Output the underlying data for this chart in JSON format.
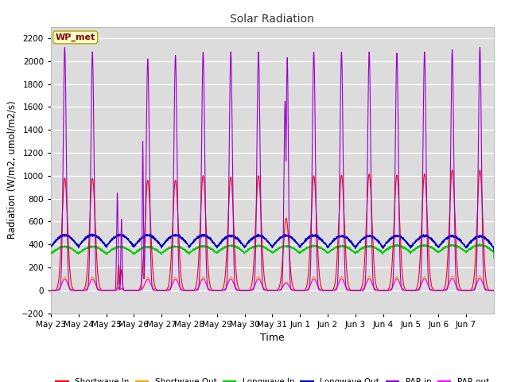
{
  "title": "Solar Radiation",
  "xlabel": "Time",
  "ylabel": "Radiation (W/m2, umol/m2/s)",
  "ylim": [
    -200,
    2300
  ],
  "yticks": [
    -200,
    0,
    200,
    400,
    600,
    800,
    1000,
    1200,
    1400,
    1600,
    1800,
    2000,
    2200
  ],
  "x_labels": [
    "May 23",
    "May 24",
    "May 25",
    "May 26",
    "May 27",
    "May 28",
    "May 29",
    "May 30",
    "May 31",
    "Jun 1",
    "Jun 2",
    "Jun 3",
    "Jun 4",
    "Jun 5",
    "Jun 6",
    "Jun 7"
  ],
  "annotation_text": "WP_met",
  "annotation_color": "#8B0000",
  "annotation_bg": "#FFFFCC",
  "colors": {
    "shortwave_in": "#FF0000",
    "shortwave_out": "#FFA500",
    "longwave_in": "#00CC00",
    "longwave_out": "#0000CD",
    "par_in": "#9900CC",
    "par_out": "#FF00FF"
  },
  "bg_color": "#DCDCDC",
  "legend_labels": [
    "Shortwave In",
    "Shortwave Out",
    "Longwave In",
    "Longwave Out",
    "PAR in",
    "PAR out"
  ],
  "n_days": 16,
  "points_per_day": 288
}
